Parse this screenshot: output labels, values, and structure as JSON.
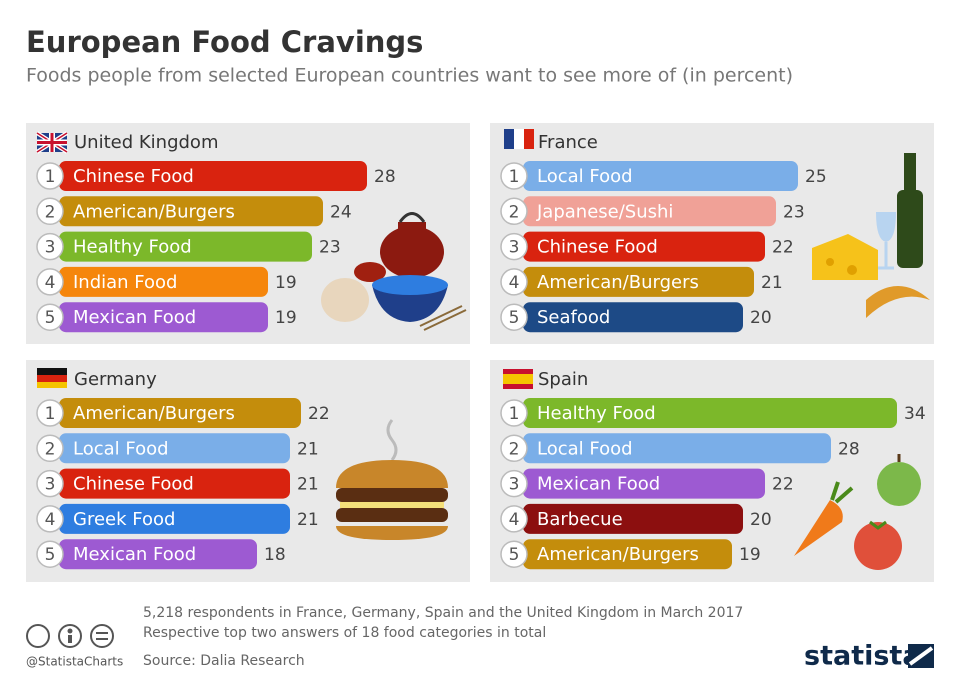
{
  "title": "European Food Cravings",
  "subtitle": "Foods people from selected European countries want to see more of (in percent)",
  "chart_data": [
    {
      "type": "bar",
      "title": "United Kingdom",
      "ranks": [
        1,
        2,
        3,
        4,
        5
      ],
      "categories": [
        "Chinese Food",
        "American/Burgers",
        "Healthy Food",
        "Indian Food",
        "Mexican Food"
      ],
      "values": [
        28,
        24,
        23,
        19,
        19
      ],
      "colors": [
        "#d9230f",
        "#c48d0c",
        "#7cb82a",
        "#f5860c",
        "#9d5ad2"
      ]
    },
    {
      "type": "bar",
      "title": "France",
      "ranks": [
        1,
        2,
        3,
        4,
        5
      ],
      "categories": [
        "Local Food",
        "Japanese/Sushi",
        "Chinese Food",
        "American/Burgers",
        "Seafood"
      ],
      "values": [
        25,
        23,
        22,
        21,
        20
      ],
      "colors": [
        "#7aaee8",
        "#f0a197",
        "#d9230f",
        "#c48d0c",
        "#1d4a86"
      ]
    },
    {
      "type": "bar",
      "title": "Germany",
      "ranks": [
        1,
        2,
        3,
        4,
        5
      ],
      "categories": [
        "American/Burgers",
        "Local Food",
        "Chinese Food",
        "Greek Food",
        "Mexican Food"
      ],
      "values": [
        22,
        21,
        21,
        21,
        18
      ],
      "colors": [
        "#c48d0c",
        "#7aaee8",
        "#d9230f",
        "#2e7de0",
        "#9d5ad2"
      ]
    },
    {
      "type": "bar",
      "title": "Spain",
      "ranks": [
        1,
        2,
        3,
        4,
        5
      ],
      "categories": [
        "Healthy Food",
        "Local Food",
        "Mexican Food",
        "Barbecue",
        "American/Burgers"
      ],
      "values": [
        34,
        28,
        22,
        20,
        19
      ],
      "colors": [
        "#7cb82a",
        "#7aaee8",
        "#9d5ad2",
        "#8c0f0f",
        "#c48d0c"
      ]
    }
  ],
  "footer": {
    "notes": [
      "5,218 respondents in France, Germany, Spain and the United Kingdom in March 2017",
      "Respective top two answers of 18 food categories in total"
    ],
    "handle": "@StatistaCharts",
    "source": "Source: Dalia Research",
    "brand": "statista"
  }
}
